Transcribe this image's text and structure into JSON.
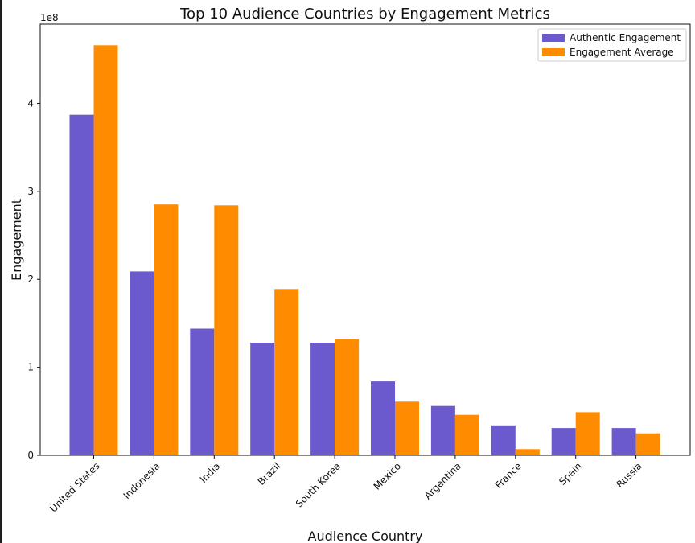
{
  "chart_data": {
    "type": "bar",
    "title": "Top 10 Audience Countries by Engagement Metrics",
    "xlabel": "Audience Country",
    "ylabel": "Engagement",
    "y_offset_label": "1e8",
    "ylim": [
      0,
      4.9
    ],
    "y_ticks": [
      0,
      1,
      2,
      3,
      4
    ],
    "y_tick_labels": [
      "0",
      "1",
      "2",
      "3",
      "4"
    ],
    "categories": [
      "United States",
      "Indonesia",
      "India",
      "Brazil",
      "South Korea",
      "Mexico",
      "Argentina",
      "France",
      "Spain",
      "Russia"
    ],
    "series": [
      {
        "name": "Authentic Engagement",
        "color": "#6a5acd",
        "values": [
          3.87,
          2.09,
          1.44,
          1.28,
          1.28,
          0.84,
          0.56,
          0.34,
          0.31,
          0.31
        ]
      },
      {
        "name": "Engagement Average",
        "color": "#ff8c00",
        "values": [
          4.66,
          2.85,
          2.84,
          1.89,
          1.32,
          0.61,
          0.46,
          0.07,
          0.49,
          0.25
        ]
      }
    ],
    "legend_position": "top-right",
    "grid": false
  }
}
